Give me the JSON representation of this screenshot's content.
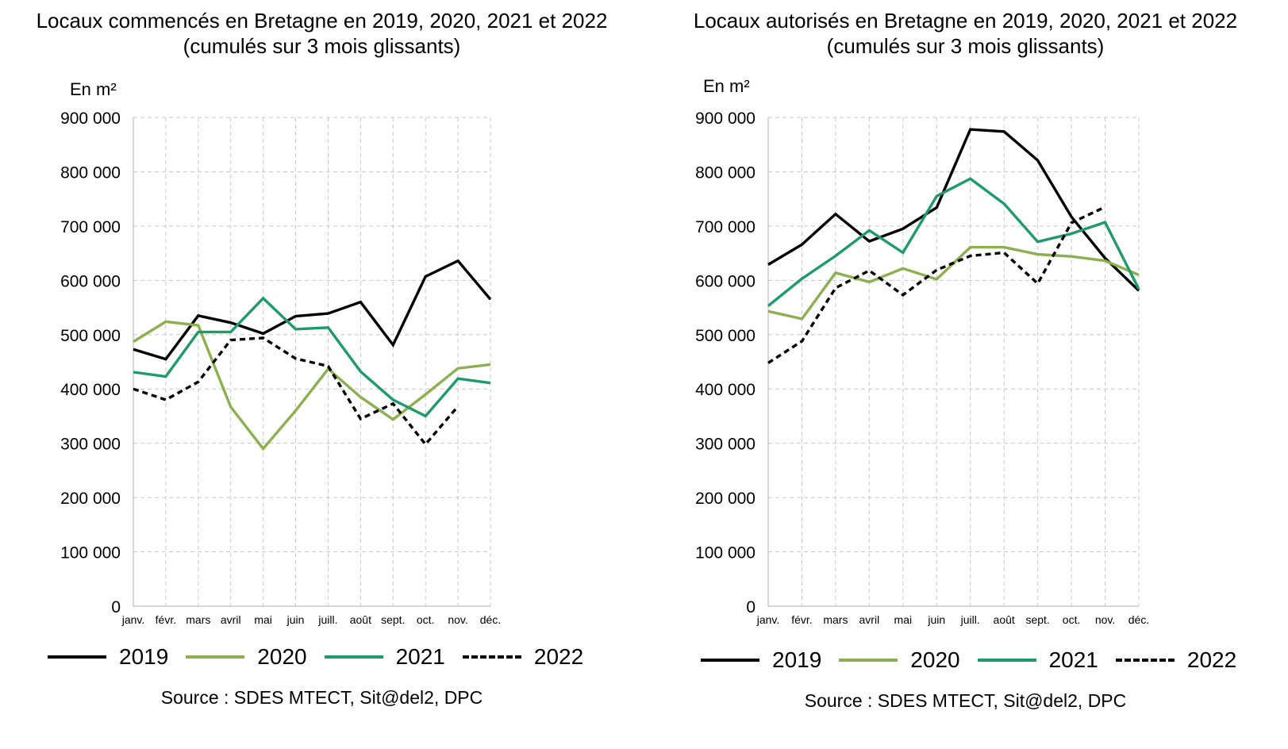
{
  "colors": {
    "2019": "#000000",
    "2020": "#8cb04f",
    "2021": "#1f9a6b",
    "2022": "#000000",
    "grid": "#c8c8c8"
  },
  "chart_data": [
    {
      "type": "line",
      "title": "Locaux commencés en Bretagne en 2019, 2020, 2021 et 2022",
      "subtitle": "(cumulés sur 3 mois glissants)",
      "ylabel": "En m²",
      "source": "Source : SDES MTECT, Sit@del2, DPC",
      "ylim": [
        0,
        900000
      ],
      "yticks": [
        "0",
        "100 000",
        "200 000",
        "300 000",
        "400 000",
        "500 000",
        "600 000",
        "700 000",
        "800 000",
        "900 000"
      ],
      "categories": [
        "janv.",
        "févr.",
        "mars",
        "avril",
        "mai",
        "juin",
        "juill.",
        "août",
        "sept.",
        "oct.",
        "nov.",
        "déc."
      ],
      "grid": true,
      "legend_position": "bottom",
      "series": [
        {
          "name": "2019",
          "style": "solid",
          "values": [
            473000,
            455000,
            535000,
            522000,
            502000,
            534000,
            539000,
            560000,
            481000,
            607000,
            636000,
            565000
          ]
        },
        {
          "name": "2020",
          "style": "solid",
          "values": [
            487000,
            524000,
            517000,
            367000,
            290000,
            360000,
            437000,
            385000,
            344000,
            390000,
            438000,
            445000
          ]
        },
        {
          "name": "2021",
          "style": "solid",
          "values": [
            431000,
            423000,
            505000,
            505000,
            567000,
            510000,
            513000,
            432000,
            380000,
            350000,
            419000,
            411000
          ]
        },
        {
          "name": "2022",
          "style": "dashed",
          "values": [
            400000,
            380000,
            413000,
            490000,
            494000,
            456000,
            442000,
            345000,
            373000,
            298000,
            368000,
            null
          ]
        }
      ]
    },
    {
      "type": "line",
      "title": "Locaux autorisés en Bretagne en 2019, 2020, 2021 et 2022",
      "subtitle": "(cumulés sur 3 mois glissants)",
      "ylabel": "En m²",
      "source": "Source : SDES MTECT, Sit@del2, DPC",
      "ylim": [
        0,
        900000
      ],
      "yticks": [
        "0",
        "100 000",
        "200 000",
        "300 000",
        "400 000",
        "500 000",
        "600 000",
        "700 000",
        "800 000",
        "900 000"
      ],
      "categories": [
        "janv.",
        "févr.",
        "mars",
        "avril",
        "mai",
        "juin",
        "juill.",
        "août",
        "sept.",
        "oct.",
        "nov.",
        "déc."
      ],
      "grid": true,
      "legend_position": "bottom",
      "series": [
        {
          "name": "2019",
          "style": "solid",
          "values": [
            629000,
            666000,
            722000,
            672000,
            695000,
            734000,
            878000,
            874000,
            821000,
            717000,
            641000,
            581000
          ]
        },
        {
          "name": "2020",
          "style": "solid",
          "values": [
            543000,
            529000,
            614000,
            597000,
            622000,
            602000,
            661000,
            661000,
            648000,
            644000,
            636000,
            610000
          ]
        },
        {
          "name": "2021",
          "style": "solid",
          "values": [
            553000,
            603000,
            645000,
            692000,
            651000,
            755000,
            787000,
            741000,
            671000,
            686000,
            707000,
            584000
          ]
        },
        {
          "name": "2022",
          "style": "dashed",
          "values": [
            448000,
            488000,
            586000,
            618000,
            573000,
            619000,
            645000,
            651000,
            594000,
            706000,
            735000,
            null
          ]
        }
      ]
    }
  ]
}
